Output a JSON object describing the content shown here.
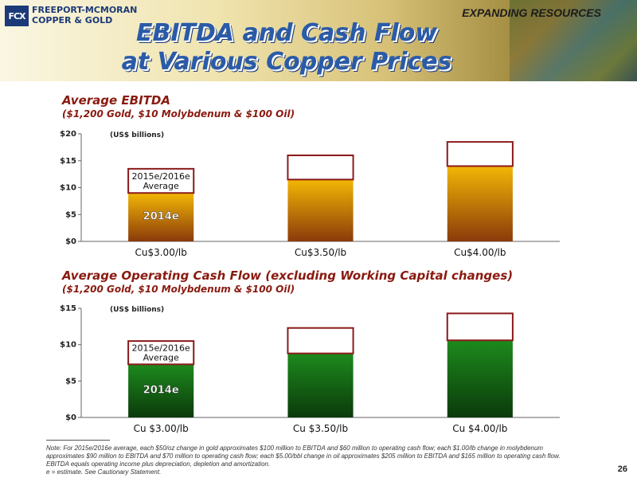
{
  "header": {
    "logo_mark": "FCX",
    "logo_line1": "FREEPORT-MCMORAN",
    "logo_line2": "COPPER & GOLD",
    "tagline": "EXPANDING RESOURCES",
    "title_line1": "EBITDA and Cash Flow",
    "title_line2": "at Various Copper Prices"
  },
  "sections": [
    {
      "heading": "Average EBITDA",
      "subheading": "($1,200 Gold, $10 Molybdenum & $100 Oil)"
    },
    {
      "heading": "Average Operating Cash Flow (excluding Working Capital changes)",
      "subheading": "($1,200 Gold, $10 Molybdenum & $100 Oil)"
    }
  ],
  "chart_data": [
    {
      "type": "bar",
      "stacked": true,
      "units_label": "(US$ billions)",
      "categories": [
        "Cu$3.00/lb",
        "Cu$3.50/lb",
        "Cu$4.00/lb"
      ],
      "series": [
        {
          "name": "2014e",
          "values": [
            9,
            11.5,
            14
          ],
          "color": "#f2b705"
        },
        {
          "name": "2015e/2016e Average",
          "values": [
            4.5,
            4.5,
            4.5
          ],
          "color": "#ffffff",
          "border": "#8b1a1a"
        }
      ],
      "ylim": [
        0,
        20
      ],
      "yticks": [
        "$0",
        "$5",
        "$10",
        "$15",
        "$20"
      ],
      "bar_labels": {
        "base": "2014e",
        "top": [
          "2015e/2016e",
          "Average"
        ]
      }
    },
    {
      "type": "bar",
      "stacked": true,
      "units_label": "(US$ billions)",
      "categories": [
        "Cu $3.00/lb",
        "Cu $3.50/lb",
        "Cu $4.00/lb"
      ],
      "series": [
        {
          "name": "2014e",
          "values": [
            7.3,
            8.8,
            10.6
          ],
          "color": "#1d8a1d"
        },
        {
          "name": "2015e/2016e Average",
          "values": [
            3.2,
            3.5,
            3.7
          ],
          "color": "#ffffff",
          "border": "#8b1a1a"
        }
      ],
      "ylim": [
        0,
        15
      ],
      "yticks": [
        "$0",
        "$5",
        "$10",
        "$15"
      ],
      "bar_labels": {
        "base": "2014e",
        "top": [
          "2015e/2016e",
          "Average"
        ]
      }
    }
  ],
  "footer": {
    "note": "Note:  For 2015e/2016e average, each $50/oz change in gold approximates $100 million to EBITDA and $60 million to operating cash flow; each $1.00/lb change in molybdenum approximates $90 million to EBITDA and $70 million to operating cash flow; each $5.00/bbl change in oil approximates $205 million to EBITDA and $165 million to operating cash flow. EBITDA equals operating income plus depreciation, depletion and amortization.",
    "estimate": "e = estimate. See Cautionary Statement.",
    "page_number": "26"
  }
}
